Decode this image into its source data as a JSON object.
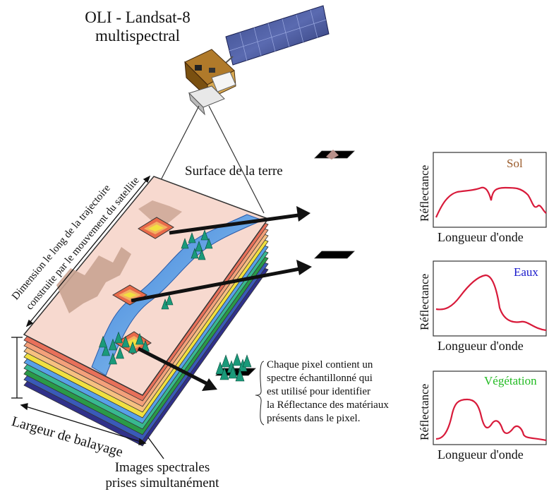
{
  "title": {
    "line1": "OLI - Landsat-8",
    "line2": "multispectral"
  },
  "surface_label": "Surface de la terre",
  "dimension_label": {
    "line1": "Dimension le long de la trajectoire",
    "line2": "construite par le mouvement du satellite"
  },
  "swath_label": "Largeur de balayage",
  "images_label": {
    "line1": "Images spectrales",
    "line2": "prises simultanément"
  },
  "pixel_note": [
    "Chaque pixel contient un",
    "spectre échantillonné qui",
    "est utilisé pour identifier",
    "la Réflectance des matériaux",
    "présents dans le pixel."
  ],
  "colors": {
    "sol": "#9a5a2a",
    "eaux": "#1a1acc",
    "vegetation": "#22bb22",
    "curve": "#d81a3a"
  },
  "spectra": [
    {
      "title": "Sol",
      "ylabel": "Réflectance",
      "xlabel": "Longueur d'onde"
    },
    {
      "title": "Eaux",
      "ylabel": "Réflectance",
      "xlabel": "Longueur d'onde"
    },
    {
      "title": "Végétation",
      "ylabel": "Réflectance",
      "xlabel": "Longueur d'onde"
    }
  ]
}
